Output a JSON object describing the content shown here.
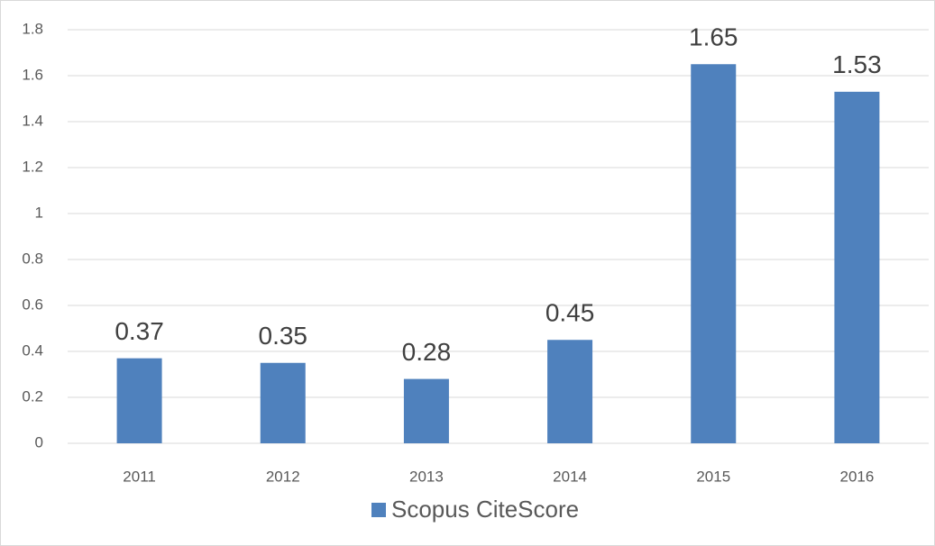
{
  "chart_data": {
    "type": "bar",
    "categories": [
      "2011",
      "2012",
      "2013",
      "2014",
      "2015",
      "2016"
    ],
    "series": [
      {
        "name": "Scopus CiteScore",
        "color": "#4f81bd",
        "values": [
          0.37,
          0.35,
          0.28,
          0.45,
          1.65,
          1.53
        ]
      }
    ],
    "ylim": [
      0,
      1.8
    ],
    "yticks": [
      0,
      0.2,
      0.4,
      0.6,
      0.8,
      1,
      1.2,
      1.4,
      1.6,
      1.8
    ],
    "grid": true,
    "legend": "bottom"
  }
}
